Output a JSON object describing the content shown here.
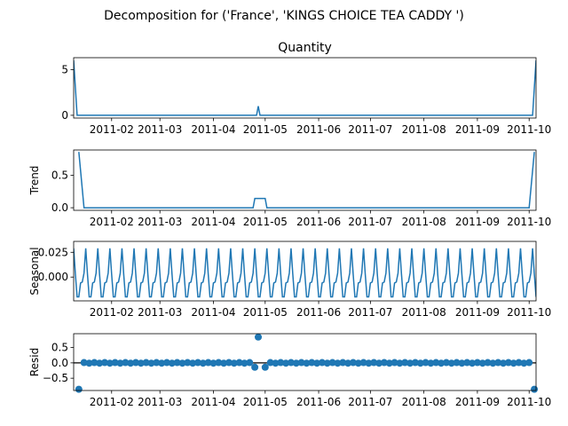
{
  "figure": {
    "suptitle": "Decomposition for ('France', 'KINGS CHOICE TEA CADDY ')"
  },
  "colors": {
    "line": "#1f77b4",
    "axis": "#000000",
    "background": "#ffffff"
  },
  "chart_data": [
    {
      "type": "line",
      "title": "Quantity",
      "ylabel": "",
      "x_range": [
        "2011-01-10",
        "2011-10-05"
      ],
      "ylim": [
        -0.3,
        6.3
      ],
      "yticks": [
        0,
        5
      ],
      "ytick_labels": [
        "0",
        "5"
      ],
      "xtick_labels": [
        "2011-02",
        "2011-03",
        "2011-04",
        "2011-05",
        "2011-06",
        "2011-07",
        "2011-08",
        "2011-09",
        "2011-10"
      ],
      "series": [
        {
          "x": [
            "2011-01-10",
            "2011-01-12",
            "2011-04-26",
            "2011-04-27",
            "2011-04-28",
            "2011-10-03",
            "2011-10-05"
          ],
          "values": [
            6,
            0,
            0,
            1,
            0,
            0,
            6
          ]
        }
      ]
    },
    {
      "type": "line",
      "title": "",
      "ylabel": "Trend",
      "x_range": [
        "2011-01-10",
        "2011-10-05"
      ],
      "ylim": [
        -0.04,
        0.89
      ],
      "yticks": [
        0.0,
        0.5
      ],
      "ytick_labels": [
        "0.0",
        "0.5"
      ],
      "xtick_labels": [
        "2011-02",
        "2011-03",
        "2011-04",
        "2011-05",
        "2011-06",
        "2011-07",
        "2011-08",
        "2011-09",
        "2011-10"
      ],
      "series": [
        {
          "x": [
            "2011-01-13",
            "2011-01-16",
            "2011-04-24",
            "2011-04-25",
            "2011-05-01",
            "2011-05-02",
            "2011-10-01",
            "2011-10-04"
          ],
          "values": [
            0.86,
            0,
            0,
            0.143,
            0.143,
            0,
            0,
            0.86
          ]
        }
      ]
    },
    {
      "type": "line",
      "title": "",
      "ylabel": "Seasonal",
      "x_range": [
        "2011-01-10",
        "2011-10-05"
      ],
      "ylim": [
        -0.024,
        0.036
      ],
      "yticks": [
        0.0,
        0.025
      ],
      "ytick_labels": [
        "0.000",
        "0.025"
      ],
      "xtick_labels": [
        "2011-02",
        "2011-03",
        "2011-04",
        "2011-05",
        "2011-06",
        "2011-07",
        "2011-08",
        "2011-09",
        "2011-10"
      ],
      "period_days": 7,
      "weekly_pattern": [
        0.029,
        0.003,
        -0.02,
        -0.02,
        -0.006,
        -0.005,
        0.004
      ]
    },
    {
      "type": "scatter",
      "title": "",
      "ylabel": "Resid",
      "x_range": [
        "2011-01-10",
        "2011-10-05"
      ],
      "ylim": [
        -0.9,
        0.95
      ],
      "yticks": [
        -0.5,
        0.0,
        0.5
      ],
      "ytick_labels": [
        "−0.5",
        "0.0",
        "0.5"
      ],
      "xtick_labels": [
        "2011-02",
        "2011-03",
        "2011-04",
        "2011-05",
        "2011-06",
        "2011-07",
        "2011-08",
        "2011-09",
        "2011-10"
      ],
      "baseline": 0,
      "outliers": [
        {
          "x": "2011-01-13",
          "y": -0.86
        },
        {
          "x": "2011-04-27",
          "y": 0.84
        },
        {
          "x": "2011-10-04",
          "y": -0.86
        }
      ],
      "dip": {
        "from": "2011-04-25",
        "to": "2011-05-01",
        "y": -0.143
      }
    }
  ]
}
